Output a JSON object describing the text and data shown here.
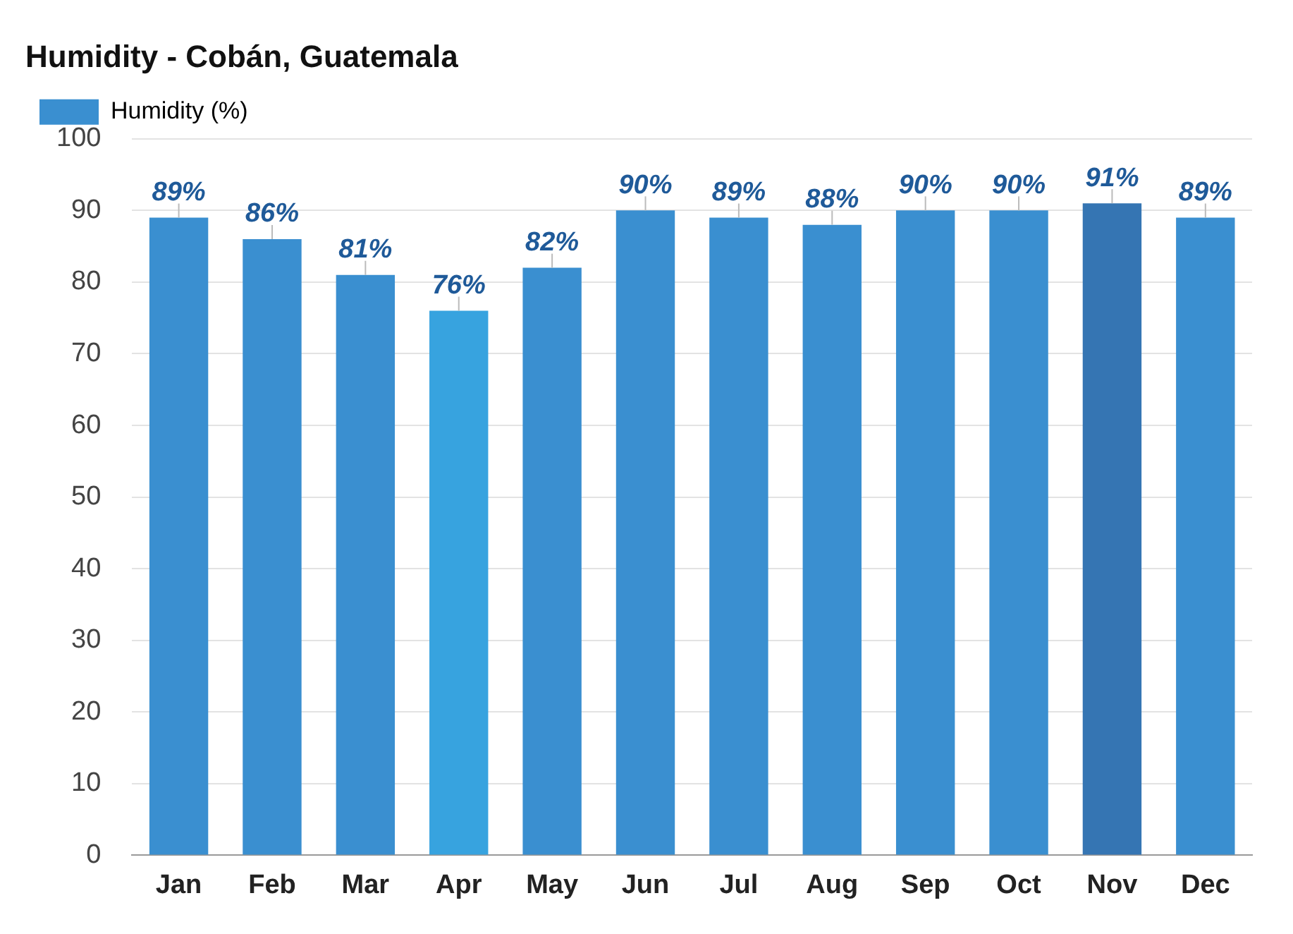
{
  "chart_data": {
    "type": "bar",
    "title": "Humidity - Cobán, Guatemala",
    "categories": [
      "Jan",
      "Feb",
      "Mar",
      "Apr",
      "May",
      "Jun",
      "Jul",
      "Aug",
      "Sep",
      "Oct",
      "Nov",
      "Dec"
    ],
    "series": [
      {
        "name": "Humidity (%)",
        "color": "#3a8fd0",
        "values": [
          89,
          86,
          81,
          76,
          82,
          90,
          89,
          88,
          90,
          90,
          91,
          89
        ],
        "colors": [
          "#3a8fd0",
          "#3a8fd0",
          "#3a8fd0",
          "#37a3df",
          "#3a8fd0",
          "#3a8fd0",
          "#3a8fd0",
          "#3a8fd0",
          "#3a8fd0",
          "#3a8fd0",
          "#3575b3",
          "#3a8fd0"
        ],
        "value_labels": [
          "89%",
          "86%",
          "81%",
          "76%",
          "82%",
          "90%",
          "89%",
          "88%",
          "90%",
          "90%",
          "91%",
          "89%"
        ]
      }
    ],
    "ylim": [
      0,
      100
    ],
    "yticks": [
      0,
      10,
      20,
      30,
      40,
      50,
      60,
      70,
      80,
      90,
      100
    ],
    "grid": "y",
    "legend": "top left"
  }
}
